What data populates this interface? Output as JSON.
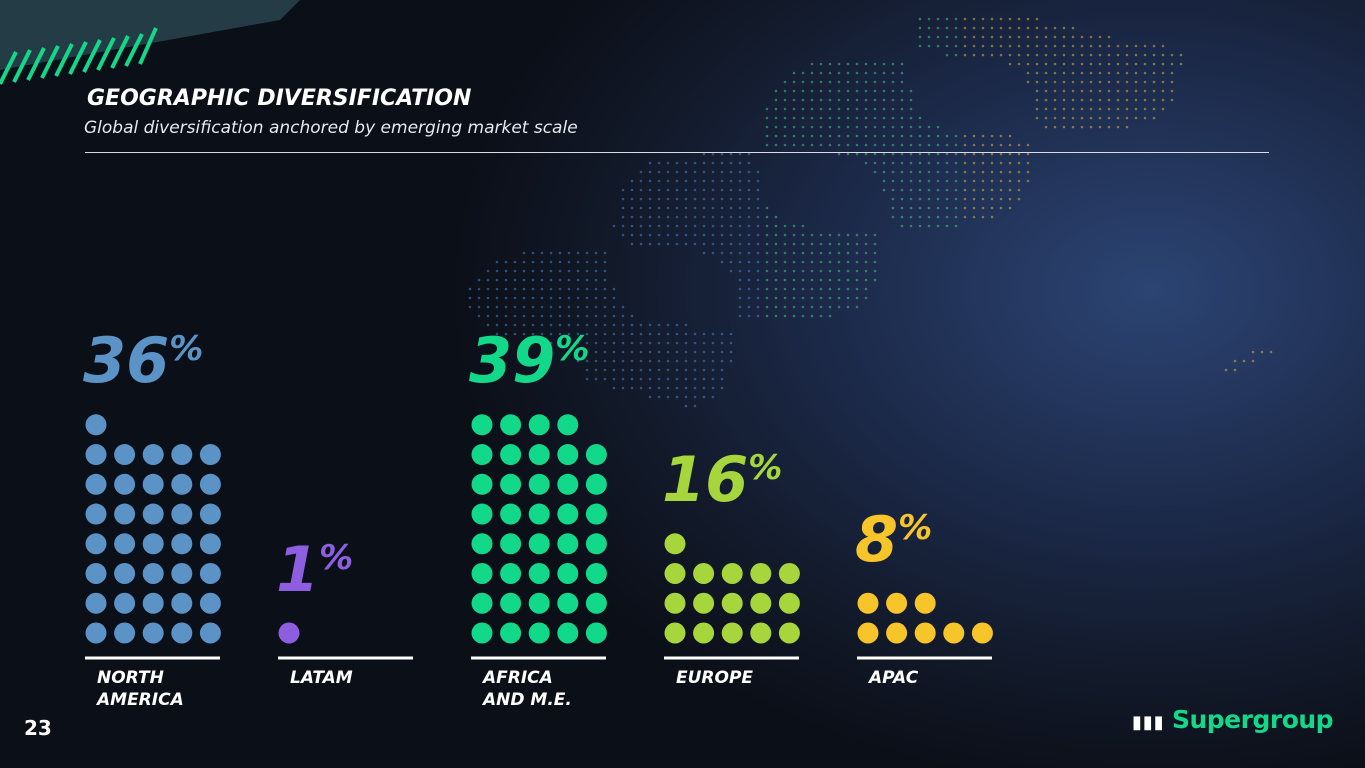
{
  "header": {
    "title": "GEOGRAPHIC DIVERSIFICATION",
    "subtitle": "Global diversification anchored by emerging market scale"
  },
  "chart_data": {
    "type": "pictogram",
    "categories": [
      "NORTH AMERICA",
      "LATAM",
      "AFRICA AND M.E.",
      "EUROPE",
      "APAC"
    ],
    "values": [
      36,
      1,
      39,
      16,
      8
    ],
    "value_labels": [
      "36%",
      "1%",
      "39%",
      "16%",
      "8%"
    ],
    "colors": [
      "#5b93c7",
      "#8d5fe0",
      "#12d88a",
      "#a6d63c",
      "#f7c52a"
    ]
  },
  "footer": {
    "page": "23",
    "logo": "Supergroup"
  }
}
